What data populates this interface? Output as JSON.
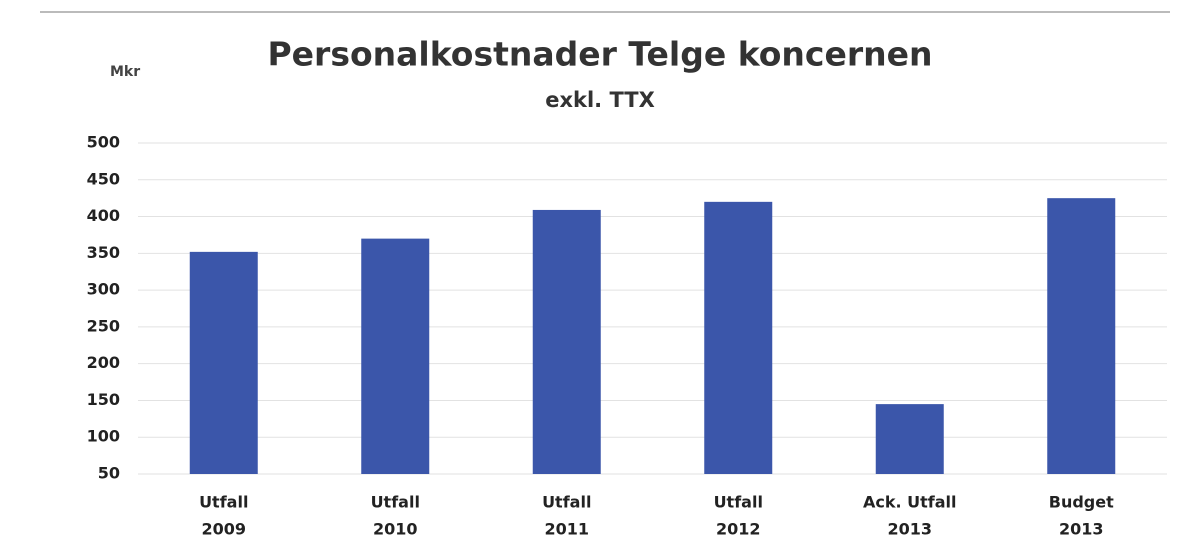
{
  "chart_data": {
    "type": "bar",
    "title": "Personalkostnader Telge koncernen",
    "subtitle": "exkl. TTX",
    "y_label": "Mkr",
    "categories": [
      [
        "Utfall",
        "2009"
      ],
      [
        "Utfall",
        "2010"
      ],
      [
        "Utfall",
        "2011"
      ],
      [
        "Utfall",
        "2012"
      ],
      [
        "Ack. Utfall",
        "2013"
      ],
      [
        "Budget",
        "2013"
      ]
    ],
    "values": [
      352,
      370,
      409,
      420,
      145,
      425
    ],
    "color": "#3b56aa",
    "ylim": [
      50,
      500
    ],
    "yticks": [
      50,
      100,
      150,
      200,
      250,
      300,
      350,
      400,
      450,
      500
    ],
    "grid": true
  }
}
